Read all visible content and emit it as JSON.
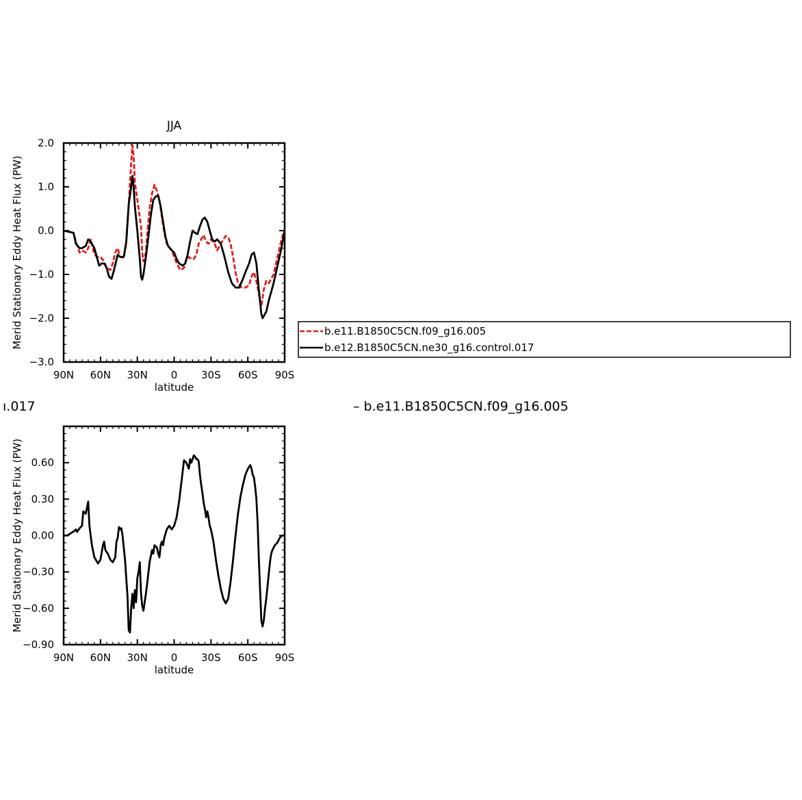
{
  "header_left_fragment": "ı.017",
  "header_right_fragment": "– b.e11.B1850C5CN.f09_g16.005",
  "legend": {
    "items": [
      {
        "label": "b.e11.B1850C5CN.f09_g16.005",
        "color": "#e41a1c",
        "dash": true
      },
      {
        "label": "b.e12.B1850C5CN.ne30_g16.control.017",
        "color": "#000000",
        "dash": false
      }
    ]
  },
  "chart_data": [
    {
      "type": "line",
      "title": "JJA",
      "xlabel": "latitude",
      "ylabel": "Merid Stationary Eddy Heat Flux (PW)",
      "xlim": [
        90,
        -90
      ],
      "ylim": [
        -3.0,
        2.0
      ],
      "x_ticks": [
        90,
        60,
        30,
        0,
        -30,
        -60,
        -90
      ],
      "x_tick_labels": [
        "90N",
        "60N",
        "30N",
        "0",
        "30S",
        "60S",
        "90S"
      ],
      "y_ticks": [
        -3.0,
        -2.0,
        -1.0,
        0.0,
        1.0,
        2.0
      ],
      "y_tick_labels": [
        "-3.0",
        "-2.0",
        "-1.0",
        "0.0",
        "1.0",
        "2.0"
      ],
      "series": [
        {
          "name": "b.e11.B1850C5CN.f09_g16.005",
          "color": "#e41a1c",
          "dash": true,
          "x": [
            90,
            82,
            80,
            77,
            75,
            72,
            70,
            68,
            65,
            62,
            60,
            57,
            55,
            52,
            50,
            48,
            46,
            44,
            41,
            39,
            37,
            35,
            34,
            33,
            32,
            30,
            27,
            26,
            25,
            23,
            22,
            20,
            18,
            16,
            14,
            12,
            10,
            8,
            6,
            2,
            0,
            -3,
            -5,
            -8,
            -10,
            -12,
            -14,
            -16,
            -18,
            -20,
            -22,
            -24,
            -26,
            -28,
            -30,
            -33,
            -35,
            -37,
            -40,
            -42,
            -44,
            -46,
            -48,
            -50,
            -52,
            -55,
            -58,
            -61,
            -63,
            -65,
            -67,
            -69,
            -71,
            -73,
            -75,
            -77,
            -79,
            -81,
            -83,
            -85,
            -87,
            -89,
            -90
          ],
          "y": [
            0.0,
            -0.05,
            -0.25,
            -0.5,
            -0.45,
            -0.5,
            -0.4,
            -0.2,
            -0.55,
            -0.6,
            -0.6,
            -0.7,
            -0.85,
            -0.9,
            -0.75,
            -0.5,
            -0.4,
            -0.6,
            -0.62,
            -0.3,
            0.6,
            1.55,
            1.95,
            1.7,
            1.1,
            0.7,
            0.1,
            -0.5,
            -0.7,
            -0.5,
            -0.1,
            0.5,
            0.85,
            1.05,
            0.9,
            0.7,
            0.3,
            -0.05,
            -0.3,
            -0.45,
            -0.6,
            -0.8,
            -0.9,
            -0.85,
            -0.65,
            -0.6,
            -0.65,
            -0.65,
            -0.55,
            -0.3,
            -0.2,
            -0.1,
            -0.25,
            -0.3,
            -0.2,
            -0.3,
            -0.45,
            -0.35,
            -0.2,
            -0.12,
            -0.15,
            -0.3,
            -0.6,
            -0.95,
            -1.2,
            -1.3,
            -1.3,
            -1.25,
            -1.05,
            -0.95,
            -1.15,
            -1.45,
            -1.72,
            -1.35,
            -1.15,
            -1.2,
            -1.1,
            -1.0,
            -0.75,
            -0.5,
            -0.25,
            -0.05,
            0.0
          ]
        },
        {
          "name": "b.e12.B1850C5CN.ne30_g16.control.017",
          "color": "#000000",
          "dash": false,
          "x": [
            90,
            82,
            80,
            77,
            75,
            72,
            70,
            68,
            65,
            63,
            61,
            59,
            57,
            55,
            53,
            51,
            49,
            46,
            44,
            41,
            39,
            37,
            35,
            34,
            33,
            32,
            30,
            28,
            27,
            26,
            25,
            23,
            21,
            19,
            17,
            15,
            13,
            11,
            9,
            7,
            5,
            2,
            0,
            -2,
            -4,
            -7,
            -9,
            -11,
            -13,
            -15,
            -17,
            -19,
            -21,
            -23,
            -25,
            -27,
            -29,
            -31,
            -33,
            -35,
            -38,
            -41,
            -44,
            -47,
            -50,
            -53,
            -56,
            -58,
            -61,
            -63,
            -65,
            -67,
            -69,
            -71,
            -72,
            -73,
            -75,
            -77,
            -79,
            -81,
            -83,
            -85,
            -87,
            -89,
            -90
          ],
          "y": [
            0.0,
            -0.05,
            -0.3,
            -0.4,
            -0.4,
            -0.35,
            -0.2,
            -0.25,
            -0.4,
            -0.6,
            -0.8,
            -0.75,
            -0.75,
            -0.85,
            -1.05,
            -1.1,
            -0.9,
            -0.55,
            -0.6,
            -0.6,
            -0.25,
            0.6,
            1.0,
            1.25,
            1.0,
            0.55,
            0.0,
            -0.65,
            -1.05,
            -1.12,
            -1.0,
            -0.6,
            -0.15,
            0.35,
            0.7,
            0.78,
            0.8,
            0.55,
            0.2,
            -0.15,
            -0.35,
            -0.45,
            -0.5,
            -0.65,
            -0.75,
            -0.8,
            -0.75,
            -0.55,
            -0.25,
            0.0,
            -0.05,
            -0.08,
            0.1,
            0.25,
            0.3,
            0.2,
            0.0,
            -0.2,
            -0.25,
            -0.2,
            -0.3,
            -0.6,
            -0.95,
            -1.2,
            -1.3,
            -1.3,
            -1.1,
            -0.95,
            -0.75,
            -0.55,
            -0.5,
            -0.75,
            -1.35,
            -1.9,
            -2.0,
            -1.95,
            -1.85,
            -1.6,
            -1.4,
            -1.2,
            -0.95,
            -0.7,
            -0.45,
            -0.15,
            0.0
          ]
        }
      ]
    },
    {
      "type": "line",
      "title": "",
      "xlabel": "latitude",
      "ylabel": "Merid Stationary Eddy Heat Flux (PW)",
      "xlim": [
        90,
        -90
      ],
      "ylim": [
        -0.9,
        0.9
      ],
      "x_ticks": [
        90,
        60,
        30,
        0,
        -30,
        -60,
        -90
      ],
      "x_tick_labels": [
        "90N",
        "60N",
        "30N",
        "0",
        "30S",
        "60S",
        "90S"
      ],
      "y_ticks": [
        -0.9,
        -0.6,
        -0.3,
        0.0,
        0.3,
        0.6
      ],
      "y_tick_labels": [
        "-0.90",
        "-0.60",
        "-0.30",
        "0.00",
        "0.30",
        "0.60"
      ],
      "series": [
        {
          "name": "",
          "color": "#000000",
          "dash": false,
          "x": [
            90,
            87,
            84,
            81,
            80,
            79,
            77,
            75,
            74,
            72,
            70,
            69,
            67,
            65,
            62,
            60,
            58,
            57,
            56,
            54,
            52,
            50,
            48,
            47,
            46,
            45,
            44,
            43,
            42,
            40,
            38,
            37,
            36,
            35,
            34,
            33,
            32,
            31,
            30,
            29,
            28,
            27,
            26,
            25,
            24,
            23,
            22,
            20,
            18,
            17,
            16,
            14,
            13,
            12,
            11,
            10,
            9,
            8,
            6,
            4,
            2,
            0,
            -2,
            -4,
            -6,
            -8,
            -10,
            -12,
            -13,
            -14,
            -15,
            -16,
            -17,
            -18,
            -19,
            -20,
            -21,
            -22,
            -23,
            -24,
            -25,
            -26,
            -27,
            -28,
            -29,
            -30,
            -32,
            -34,
            -36,
            -38,
            -40,
            -42,
            -44,
            -46,
            -48,
            -50,
            -52,
            -54,
            -56,
            -58,
            -60,
            -62,
            -63,
            -64,
            -65,
            -66,
            -67,
            -68,
            -69,
            -70,
            -71,
            -72,
            -73,
            -74,
            -75,
            -76,
            -77,
            -78,
            -79,
            -80,
            -82,
            -84,
            -86,
            -88,
            -90
          ],
          "y": [
            0.0,
            0.0,
            0.02,
            0.04,
            0.05,
            0.03,
            0.06,
            0.08,
            0.2,
            0.18,
            0.28,
            0.08,
            -0.08,
            -0.18,
            -0.23,
            -0.2,
            -0.08,
            -0.05,
            -0.12,
            -0.15,
            -0.2,
            -0.22,
            -0.18,
            -0.05,
            -0.02,
            0.07,
            0.05,
            0.06,
            0.0,
            -0.2,
            -0.5,
            -0.78,
            -0.8,
            -0.6,
            -0.48,
            -0.6,
            -0.45,
            -0.55,
            -0.35,
            -0.3,
            -0.22,
            -0.48,
            -0.58,
            -0.62,
            -0.55,
            -0.48,
            -0.4,
            -0.22,
            -0.12,
            -0.15,
            -0.08,
            -0.1,
            -0.15,
            -0.18,
            -0.08,
            -0.05,
            -0.08,
            -0.02,
            0.05,
            0.08,
            0.05,
            0.08,
            0.15,
            0.28,
            0.45,
            0.62,
            0.6,
            0.55,
            0.63,
            0.6,
            0.63,
            0.66,
            0.65,
            0.63,
            0.63,
            0.61,
            0.5,
            0.42,
            0.35,
            0.27,
            0.22,
            0.15,
            0.2,
            0.15,
            0.08,
            0.05,
            -0.05,
            -0.2,
            -0.33,
            -0.44,
            -0.52,
            -0.56,
            -0.52,
            -0.38,
            -0.2,
            0.0,
            0.18,
            0.32,
            0.42,
            0.5,
            0.55,
            0.58,
            0.55,
            0.5,
            0.48,
            0.4,
            0.3,
            0.1,
            -0.2,
            -0.45,
            -0.7,
            -0.75,
            -0.7,
            -0.6,
            -0.52,
            -0.42,
            -0.32,
            -0.22,
            -0.15,
            -0.12,
            -0.08,
            -0.06,
            -0.02,
            0.0,
            0.0
          ]
        }
      ]
    }
  ]
}
